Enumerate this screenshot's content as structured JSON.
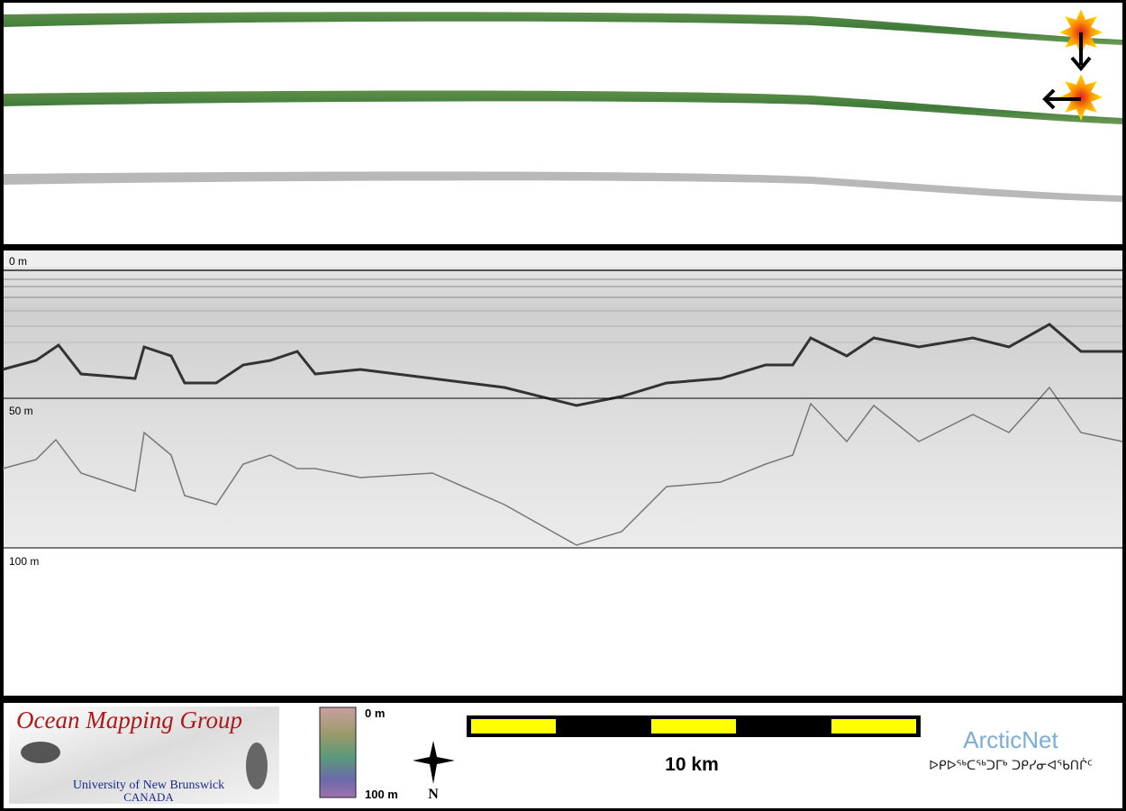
{
  "profile": {
    "depth_labels": [
      "0 m",
      "50 m",
      "100 m"
    ]
  },
  "footer": {
    "logo": {
      "title": "Ocean Mapping Group",
      "university": "University of New Brunswick",
      "country": "CANADA"
    },
    "colorbar": {
      "top_label": "0 m",
      "bottom_label": "100 m"
    },
    "compass": "N",
    "scale_bar": "10 km",
    "arcticnet": {
      "name": "ArcticNet",
      "syllabics": "ᐅᑭᐅᖅᑕᖅᑐᒥᒃ ᑐᑭᓯᓂᐊᖃᑎᒌᑦ"
    }
  }
}
